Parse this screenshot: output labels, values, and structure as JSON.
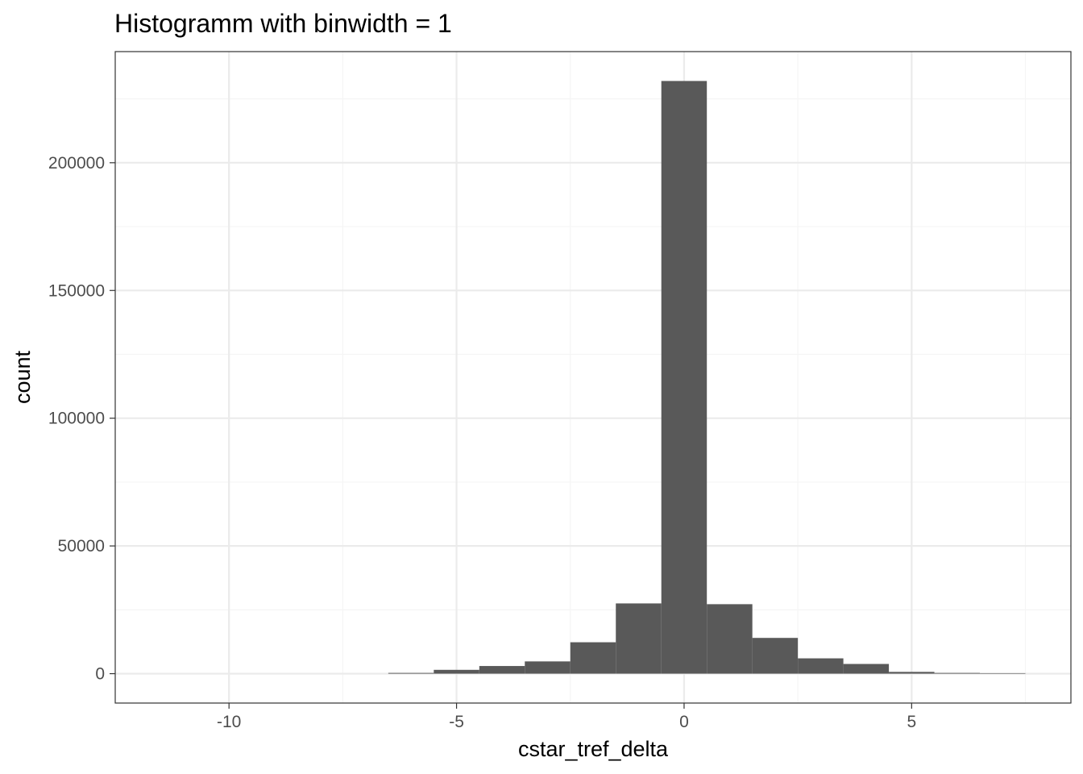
{
  "chart_data": {
    "type": "bar",
    "title": "Histogramm with binwidth = 1",
    "xlabel": "cstar_tref_delta",
    "ylabel": "count",
    "binwidth": 1,
    "bins": [
      {
        "x": -6,
        "count": 300
      },
      {
        "x": -5,
        "count": 1500
      },
      {
        "x": -4,
        "count": 3000
      },
      {
        "x": -3,
        "count": 4800
      },
      {
        "x": -2,
        "count": 12300
      },
      {
        "x": -1,
        "count": 27500
      },
      {
        "x": 0,
        "count": 232000
      },
      {
        "x": 1,
        "count": 27200
      },
      {
        "x": 2,
        "count": 14000
      },
      {
        "x": 3,
        "count": 6000
      },
      {
        "x": 4,
        "count": 3800
      },
      {
        "x": 5,
        "count": 700
      },
      {
        "x": 6,
        "count": 300
      },
      {
        "x": 7,
        "count": 200
      }
    ],
    "xlim": [
      -12.5,
      8.5
    ],
    "ylim": [
      -11500,
      243500
    ],
    "x_ticks": [
      -10,
      -5,
      0,
      5
    ],
    "x_tick_labels": [
      "-10",
      "-5",
      "0",
      "5"
    ],
    "y_ticks": [
      0,
      50000,
      100000,
      150000,
      200000
    ],
    "y_tick_labels": [
      "0",
      "50000",
      "100000",
      "150000",
      "200000"
    ],
    "x_minor_ticks": [
      -7.5,
      -2.5,
      2.5,
      7.5
    ],
    "y_minor_ticks": [
      25000,
      75000,
      125000,
      175000,
      225000
    ],
    "grid": true,
    "colors": {
      "bar_fill": "#595959",
      "grid_major": "#ebebeb",
      "grid_minor": "#f5f5f5",
      "panel_border": "#333333",
      "tick_label": "#4d4d4d"
    }
  }
}
